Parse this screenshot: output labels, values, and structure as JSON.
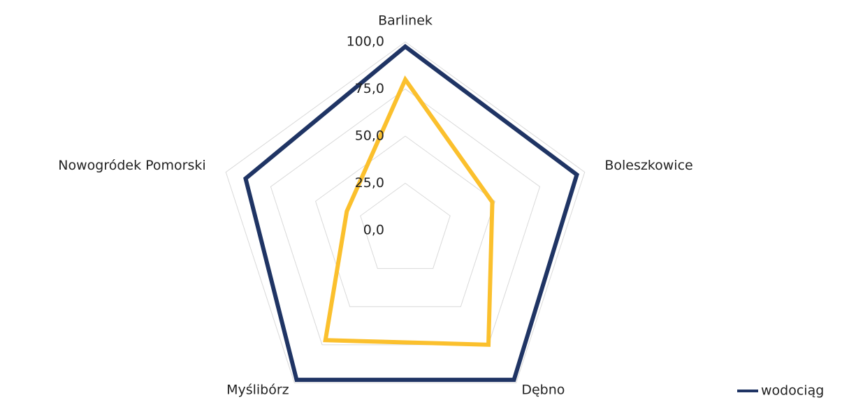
{
  "chart_data": {
    "type": "radar",
    "categories": [
      "Barlinek",
      "Boleszkowice",
      "Dębno",
      "Myślibórz",
      "Nowogródek Pomorski"
    ],
    "series": [
      {
        "name": "wodociąg",
        "color": "#1f3464",
        "values": [
          97.5,
          95.6,
          98,
          98,
          89
        ]
      },
      {
        "color": "#fbc02d",
        "values": [
          80,
          48.5,
          75,
          72,
          32.6
        ]
      }
    ],
    "ylim": [
      0,
      100
    ],
    "yticks": [
      {
        "value": 0,
        "label": "0,0"
      },
      {
        "value": 25,
        "label": "25,0"
      },
      {
        "value": 50,
        "label": "50,0"
      },
      {
        "value": 75,
        "label": "75,0"
      },
      {
        "value": 100,
        "label": "100,0"
      }
    ],
    "grid": true
  }
}
